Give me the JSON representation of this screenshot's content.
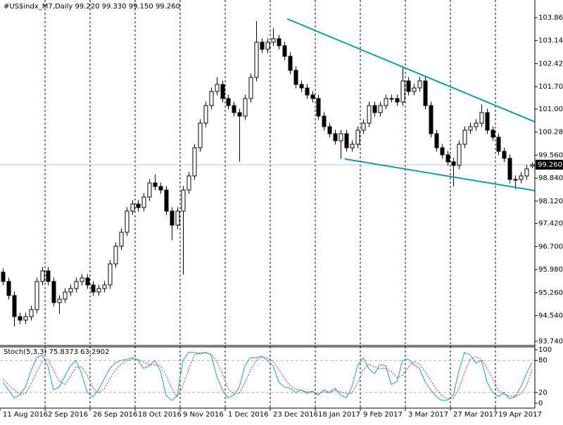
{
  "chart_data": [
    {
      "type": "candlestick",
      "title": "#US$indx_M7,Daily  99.220 99.330 99.150 99.260",
      "open": [
        95.9,
        95.61,
        95.17,
        94.51,
        94.4,
        94.51,
        94.73,
        95.61,
        95.94,
        95.61,
        94.95,
        95.06,
        95.28,
        95.39,
        95.61,
        95.72,
        95.5,
        95.28,
        95.39,
        95.5,
        96.16,
        96.71,
        97.15,
        97.81,
        98.03,
        97.92,
        98.25,
        98.69,
        98.58,
        98.47,
        97.81,
        97.37,
        97.81,
        98.47,
        98.91,
        99.79,
        100.56,
        101.11,
        101.55,
        101.77,
        101.33,
        101.11,
        100.89,
        100.78,
        101.33,
        101.99,
        103.09,
        102.87,
        103.09,
        103.2,
        102.98,
        102.65,
        102.21,
        101.77,
        101.66,
        101.44,
        101.33,
        100.78,
        100.45,
        100.23,
        100.01,
        100.23,
        99.79,
        99.9,
        100.34,
        100.56,
        101.11,
        100.89,
        101.11,
        101.33,
        101.33,
        101.22,
        101.88,
        101.55,
        101.66,
        101.88,
        101.11,
        100.23,
        99.79,
        99.57,
        99.35,
        99.24,
        99.9,
        100.34,
        100.45,
        100.56,
        100.89,
        100.34,
        100.12,
        99.68,
        99.46,
        98.8,
        98.8,
        98.91,
        99.22
      ],
      "high": [
        96.02,
        95.73,
        95.29,
        94.63,
        94.63,
        94.85,
        95.73,
        96.06,
        96.06,
        95.73,
        95.18,
        95.4,
        95.51,
        95.73,
        95.84,
        95.84,
        95.62,
        95.51,
        95.62,
        96.28,
        96.83,
        97.27,
        97.93,
        98.15,
        98.15,
        98.37,
        98.81,
        98.96,
        98.7,
        98.59,
        97.93,
        97.93,
        98.59,
        99.03,
        99.91,
        100.68,
        101.23,
        101.67,
        101.99,
        101.89,
        101.45,
        101.23,
        101.01,
        101.45,
        102.11,
        103.75,
        103.21,
        103.21,
        103.53,
        103.32,
        103.1,
        102.77,
        102.33,
        101.89,
        101.78,
        101.56,
        101.45,
        100.9,
        100.57,
        100.35,
        100.35,
        100.35,
        100.02,
        100.46,
        100.68,
        101.23,
        101.23,
        101.23,
        101.45,
        101.45,
        101.45,
        102.3,
        102.0,
        101.78,
        102.0,
        102.0,
        101.23,
        100.35,
        99.91,
        99.69,
        99.47,
        100.02,
        100.46,
        100.57,
        100.68,
        101.15,
        101.01,
        100.46,
        100.24,
        99.8,
        99.58,
        98.92,
        99.03,
        99.25,
        99.33
      ],
      "low": [
        95.49,
        95.05,
        94.2,
        94.28,
        94.28,
        94.39,
        94.61,
        95.49,
        95.49,
        94.83,
        94.6,
        94.94,
        95.16,
        95.27,
        95.49,
        95.38,
        95.16,
        95.16,
        95.27,
        95.38,
        96.04,
        96.59,
        97.03,
        97.69,
        97.8,
        97.8,
        98.13,
        98.46,
        98.35,
        97.69,
        96.9,
        97.25,
        95.83,
        98.35,
        98.79,
        99.67,
        100.44,
        100.99,
        101.43,
        101.21,
        100.99,
        100.77,
        99.35,
        100.66,
        101.21,
        101.87,
        102.75,
        102.75,
        102.97,
        102.86,
        102.53,
        102.09,
        101.65,
        101.54,
        101.32,
        101.21,
        100.66,
        100.33,
        100.11,
        99.89,
        99.44,
        99.67,
        99.67,
        99.78,
        100.22,
        100.44,
        100.77,
        100.77,
        100.99,
        101.21,
        101.1,
        101.1,
        101.43,
        101.43,
        101.54,
        100.99,
        100.11,
        99.67,
        99.45,
        99.23,
        98.58,
        99.12,
        99.78,
        100.22,
        100.33,
        100.44,
        100.22,
        100.0,
        99.56,
        99.34,
        98.68,
        98.5,
        98.68,
        98.79,
        99.15
      ],
      "close": [
        95.61,
        95.17,
        94.51,
        94.4,
        94.51,
        94.73,
        95.61,
        95.94,
        95.61,
        94.95,
        95.06,
        95.28,
        95.39,
        95.61,
        95.72,
        95.5,
        95.28,
        95.39,
        95.5,
        96.16,
        96.71,
        97.15,
        97.81,
        98.03,
        97.92,
        98.25,
        98.69,
        98.58,
        98.47,
        97.81,
        97.37,
        97.81,
        98.47,
        98.91,
        99.79,
        100.56,
        101.11,
        101.55,
        101.77,
        101.33,
        101.11,
        100.89,
        100.78,
        101.33,
        101.99,
        103.09,
        102.87,
        103.09,
        103.2,
        102.98,
        102.65,
        102.21,
        101.77,
        101.66,
        101.44,
        101.33,
        100.78,
        100.45,
        100.23,
        100.01,
        100.23,
        99.79,
        99.9,
        100.34,
        100.56,
        101.11,
        100.89,
        101.11,
        101.33,
        101.33,
        101.22,
        101.88,
        101.55,
        101.66,
        101.88,
        101.11,
        100.23,
        99.79,
        99.57,
        99.35,
        99.24,
        99.9,
        100.34,
        100.45,
        100.56,
        100.89,
        100.34,
        100.12,
        99.68,
        99.46,
        98.8,
        98.8,
        98.91,
        99.13,
        99.26
      ],
      "ylim": [
        93.63,
        104.41
      ],
      "yticks": [
        {
          "value": 103.86,
          "label": "103.860"
        },
        {
          "value": 103.14,
          "label": "103.140"
        },
        {
          "value": 102.42,
          "label": "102.420"
        },
        {
          "value": 101.7,
          "label": "101.700"
        },
        {
          "value": 101.0,
          "label": "101.000"
        },
        {
          "value": 100.28,
          "label": "100.280"
        },
        {
          "value": 99.56,
          "label": "99.560"
        },
        {
          "value": 98.84,
          "label": "98.840"
        },
        {
          "value": 98.12,
          "label": "98.120"
        },
        {
          "value": 97.42,
          "label": "97.420"
        },
        {
          "value": 96.7,
          "label": "96.700"
        },
        {
          "value": 95.98,
          "label": "95.980"
        },
        {
          "value": 95.26,
          "label": "95.260"
        },
        {
          "value": 94.54,
          "label": "94.540"
        },
        {
          "value": 93.74,
          "label": "93.740"
        }
      ],
      "xlim": [
        -0.5,
        94.5
      ],
      "xticks": [
        {
          "value": 0,
          "label": "11 Aug 2016"
        },
        {
          "value": 8,
          "label": "2 Sep 2016"
        },
        {
          "value": 16,
          "label": "26 Sep 2016"
        },
        {
          "value": 24,
          "label": "18 Oct 2016"
        },
        {
          "value": 32,
          "label": "9 Nov 2016"
        },
        {
          "value": 40,
          "label": "1 Dec 2016"
        },
        {
          "value": 48,
          "label": "23 Dec 2016"
        },
        {
          "value": 56,
          "label": "18 Jan 2017"
        },
        {
          "value": 64,
          "label": "9 Feb 2017"
        },
        {
          "value": 72,
          "label": "3 Mar 2017"
        },
        {
          "value": 80,
          "label": "27 Mar 2017"
        },
        {
          "value": 88,
          "label": "19 Apr 2017"
        }
      ],
      "grid": true,
      "price_label": {
        "value": 99.26,
        "label": "99.260"
      },
      "trendlines": [
        {
          "color": "#1a9a9a",
          "x": [
            50.5,
            94.5
          ],
          "y": [
            103.82,
            100.6
          ]
        },
        {
          "color": "#1a9a9a",
          "x": [
            60.75,
            94.5
          ],
          "y": [
            99.44,
            98.45
          ]
        }
      ]
    },
    {
      "type": "line",
      "title": "Stoch(5,3,3) 75.8373 63.2902",
      "ylim": [
        0,
        100
      ],
      "yticks": [
        100,
        80,
        20,
        0
      ],
      "series": [
        {
          "color": "#1aa3b8",
          "style": "solid",
          "values": [
            40,
            25,
            10,
            15,
            30,
            60,
            85,
            90,
            70,
            25,
            30,
            50,
            70,
            80,
            55,
            20,
            12,
            25,
            45,
            65,
            75,
            80,
            82,
            85,
            80,
            65,
            70,
            80,
            60,
            15,
            5,
            15,
            80,
            95,
            95,
            92,
            95,
            90,
            50,
            25,
            10,
            15,
            30,
            70,
            85,
            85,
            88,
            80,
            70,
            40,
            30,
            28,
            20,
            25,
            18,
            22,
            15,
            25,
            20,
            28,
            15,
            10,
            30,
            70,
            85,
            65,
            55,
            72,
            70,
            35,
            40,
            80,
            82,
            72,
            65,
            40,
            25,
            12,
            5,
            6,
            15,
            60,
            95,
            90,
            75,
            80,
            40,
            20,
            12,
            20,
            8,
            12,
            30,
            55,
            75.8373
          ]
        },
        {
          "color": "#e02020",
          "style": "dotted",
          "values": [
            45,
            35,
            25,
            17,
            18,
            35,
            58,
            78,
            82,
            62,
            42,
            35,
            50,
            67,
            68,
            52,
            29,
            19,
            27,
            45,
            62,
            73,
            79,
            82,
            82,
            77,
            72,
            72,
            70,
            52,
            27,
            12,
            33,
            63,
            90,
            94,
            94,
            92,
            78,
            55,
            28,
            17,
            18,
            38,
            62,
            80,
            86,
            84,
            79,
            63,
            47,
            33,
            26,
            24,
            21,
            22,
            18,
            21,
            20,
            24,
            21,
            18,
            18,
            37,
            62,
            73,
            68,
            64,
            66,
            59,
            48,
            52,
            67,
            78,
            73,
            59,
            43,
            26,
            14,
            8,
            9,
            27,
            57,
            82,
            87,
            82,
            65,
            47,
            24,
            17,
            13,
            13,
            17,
            32,
            63.2902
          ]
        }
      ]
    }
  ]
}
